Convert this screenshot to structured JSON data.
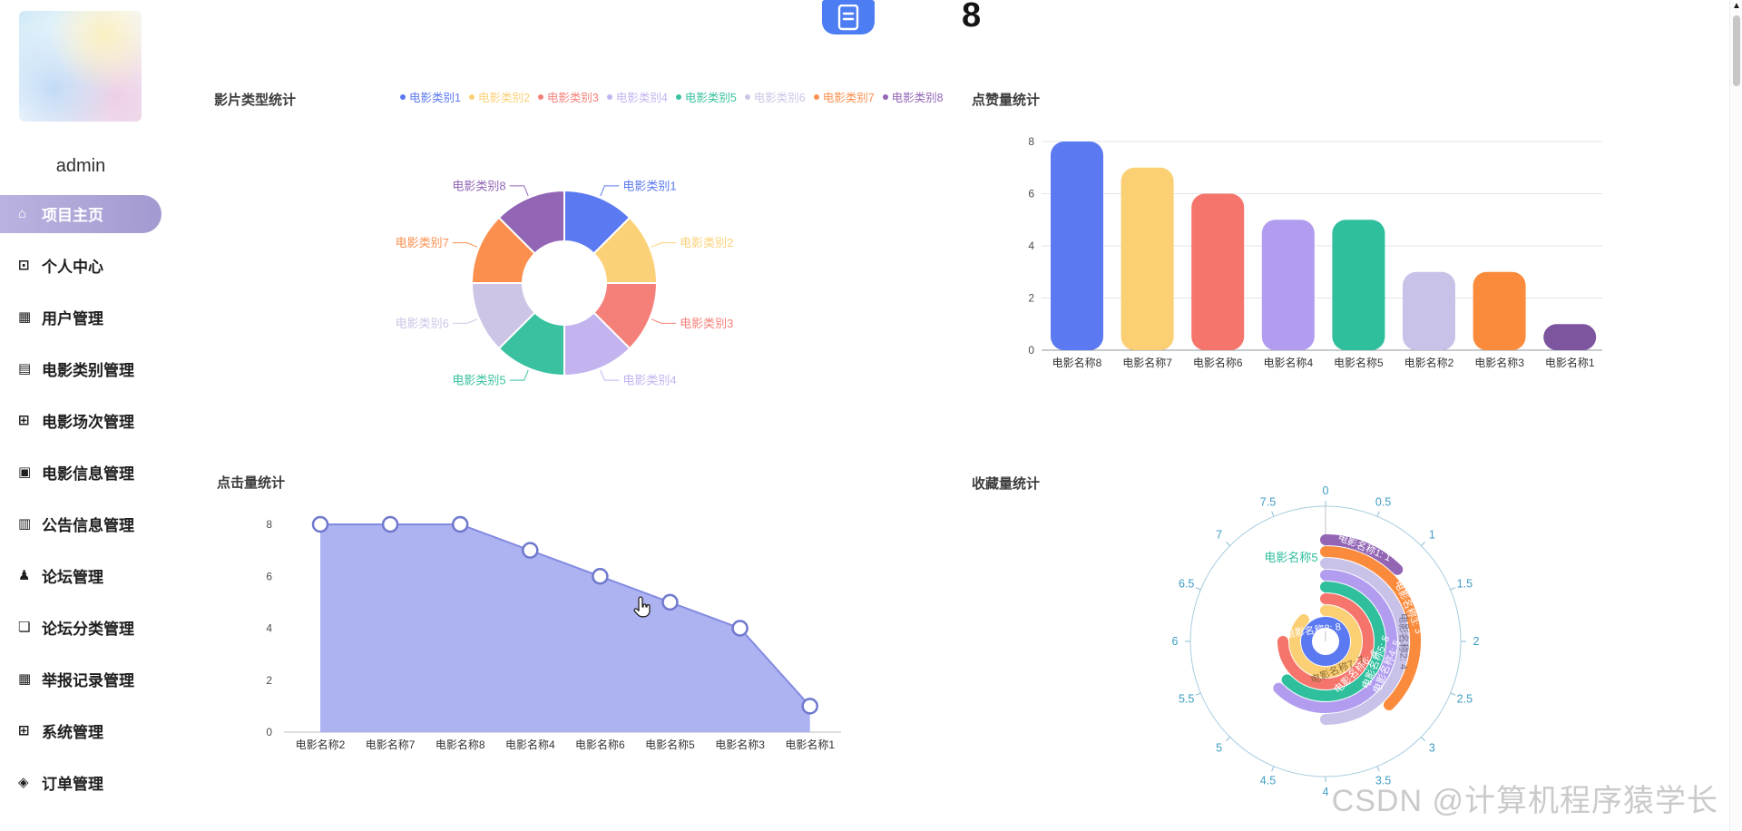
{
  "sidebar": {
    "username": "admin",
    "items": [
      {
        "label": "项目主页",
        "icon": "⌂",
        "icon_name": "home-icon",
        "active": true
      },
      {
        "label": "个人中心",
        "icon": "⊡",
        "icon_name": "profile-icon",
        "active": false
      },
      {
        "label": "用户管理",
        "icon": "▦",
        "icon_name": "users-icon",
        "active": false
      },
      {
        "label": "电影类别管理",
        "icon": "▤",
        "icon_name": "movie-category-icon",
        "active": false
      },
      {
        "label": "电影场次管理",
        "icon": "⊞",
        "icon_name": "movie-session-icon",
        "active": false
      },
      {
        "label": "电影信息管理",
        "icon": "▣",
        "icon_name": "movie-info-icon",
        "active": false
      },
      {
        "label": "公告信息管理",
        "icon": "▥",
        "icon_name": "announcement-icon",
        "active": false
      },
      {
        "label": "论坛管理",
        "icon": "♟",
        "icon_name": "forum-icon",
        "active": false
      },
      {
        "label": "论坛分类管理",
        "icon": "❏",
        "icon_name": "forum-category-icon",
        "active": false
      },
      {
        "label": "举报记录管理",
        "icon": "▦",
        "icon_name": "report-icon",
        "active": false
      },
      {
        "label": "系统管理",
        "icon": "⊞",
        "icon_name": "system-icon",
        "active": false
      },
      {
        "label": "订单管理",
        "icon": "◈",
        "icon_name": "order-icon",
        "active": false
      }
    ]
  },
  "header": {
    "count": "8",
    "icon_name": "document-icon",
    "icon_color": "#4d7df2"
  },
  "watermark": "CSDN @计算机程序猿学长",
  "cursor": {
    "type": "hand-pointer"
  },
  "scrollbar": {
    "up_arrow": "▲"
  },
  "chart_data": [
    {
      "type": "pie",
      "name": "影片类型统计",
      "legend_position": "top",
      "categories": [
        "电影类别1",
        "电影类别2",
        "电影类别3",
        "电影类别4",
        "电影类别5",
        "电影类别6",
        "电影类别7",
        "电影类别8"
      ],
      "values": [
        1,
        1,
        1,
        1,
        1,
        1,
        1,
        1
      ],
      "colors": [
        "#5b79f0",
        "#fbd178",
        "#f5807a",
        "#c3b4f0",
        "#3ac2a0",
        "#cdc5e6",
        "#fb8f4e",
        "#9265b5"
      ],
      "inner_radius_ratio": 0.45
    },
    {
      "type": "bar",
      "name": "点赞量统计",
      "categories": [
        "电影名称8",
        "电影名称7",
        "电影名称6",
        "电影名称4",
        "电影名称5",
        "电影名称2",
        "电影名称3",
        "电影名称1"
      ],
      "values": [
        8,
        7,
        6,
        5,
        5,
        3,
        3,
        1
      ],
      "colors": [
        "#5b79f0",
        "#fbcf73",
        "#f5756c",
        "#b19cf0",
        "#2fbf9d",
        "#c8c2e8",
        "#fb8b3c",
        "#7d559e"
      ],
      "ylim": [
        0,
        8
      ],
      "yticks": [
        0,
        2,
        4,
        6,
        8
      ],
      "grid": true
    },
    {
      "type": "area",
      "name": "点击量统计",
      "categories": [
        "电影名称2",
        "电影名称7",
        "电影名称8",
        "电影名称4",
        "电影名称6",
        "电影名称5",
        "电影名称3",
        "电影名称1"
      ],
      "values": [
        8,
        8,
        8,
        7,
        6,
        5,
        4,
        1
      ],
      "fill_color": "#a9aef0",
      "line_color": "#8289e0",
      "marker_color": "#6f78cc",
      "ylim": [
        0,
        8
      ],
      "yticks": [
        0,
        2,
        4,
        6,
        8
      ],
      "grid": false
    },
    {
      "type": "polar_bar",
      "name": "收藏量统计",
      "series": [
        {
          "name": "电影名称1",
          "value": 1,
          "color": "#9265b5",
          "label": "电影名称1: 1",
          "label_color": "#ffffff"
        },
        {
          "name": "电影名称3",
          "value": 3,
          "color": "#fb8b3c",
          "label": "电影名称3: 3",
          "label_color": "#ffffff"
        },
        {
          "name": "电影名称2",
          "value": 4,
          "color": "#c8c2e8",
          "label": "电影名称2: 4",
          "label_color": "#6f6f8a"
        },
        {
          "name": "电影名称4",
          "value": 5,
          "color": "#b19cf0",
          "label": "电影名称4: 5",
          "label_color": "#ffffff"
        },
        {
          "name": "电影名称5",
          "value": 5,
          "color": "#2fbf9d",
          "label": "电影名称5: 5",
          "label_color": "#ffffff"
        },
        {
          "name": "电影名称6",
          "value": 6,
          "color": "#f5756c",
          "label": "电影名称6: 6",
          "label_color": "#ffffff"
        },
        {
          "name": "电影名称7",
          "value": 7,
          "color": "#fbcf73",
          "label": "电影名称7: 7",
          "label_color": "#8a6a35"
        },
        {
          "name": "电影名称8",
          "value": 8,
          "color": "#5b79f0",
          "label": "电影名称8: 8",
          "label_color": "#ffffff"
        }
      ],
      "angle_max": 8,
      "angle_tick_labels": [
        "0",
        "0.5",
        "1",
        "1.5",
        "2",
        "2.5",
        "3",
        "3.5",
        "4",
        "4.5",
        "5",
        "5.5",
        "6",
        "6.5",
        "7",
        "7.5"
      ],
      "axis_label_color": "#3f9cc4",
      "floating_label": {
        "text": "电影名称5",
        "color": "#2fbf9d"
      }
    }
  ]
}
